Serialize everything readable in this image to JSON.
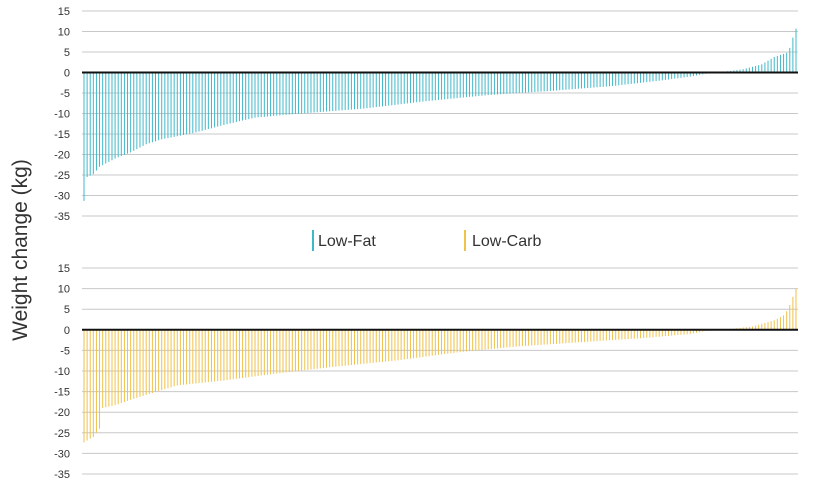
{
  "chart_data": {
    "type": "bar",
    "ylabel": "Weight change (kg)",
    "ylim": [
      -35,
      15
    ],
    "yticks": [
      15,
      10,
      5,
      0,
      -5,
      -10,
      -15,
      -20,
      -25,
      -30,
      -35
    ],
    "grid": true,
    "legend": [
      {
        "label": "Low-Fat",
        "color": "#3fb8c9"
      },
      {
        "label": "Low-Carb",
        "color": "#f0c24a"
      }
    ],
    "panels": [
      {
        "series": "Low-Fat",
        "color": "#3fb8c9",
        "bar_count": 230,
        "sorted_values_anchors": [
          [
            0,
            -31.3
          ],
          [
            1,
            -25.5
          ],
          [
            3,
            -24.8
          ],
          [
            5,
            -23
          ],
          [
            10,
            -21
          ],
          [
            15,
            -19.5
          ],
          [
            20,
            -17.5
          ],
          [
            25,
            -16.3
          ],
          [
            35,
            -14.8
          ],
          [
            45,
            -12.8
          ],
          [
            55,
            -11
          ],
          [
            70,
            -10
          ],
          [
            90,
            -8.8
          ],
          [
            110,
            -7
          ],
          [
            130,
            -5.5
          ],
          [
            150,
            -4.5
          ],
          [
            170,
            -3.3
          ],
          [
            185,
            -2
          ],
          [
            195,
            -1
          ],
          [
            200,
            -0.3
          ],
          [
            204,
            0
          ],
          [
            212,
            0.8
          ],
          [
            218,
            2
          ],
          [
            222,
            3.8
          ],
          [
            226,
            4.8
          ],
          [
            227,
            6
          ],
          [
            228,
            8.5
          ],
          [
            229,
            10.7
          ]
        ]
      },
      {
        "series": "Low-Carb",
        "color": "#f0c24a",
        "bar_count": 230,
        "sorted_values_anchors": [
          [
            0,
            -27.3
          ],
          [
            3,
            -26
          ],
          [
            5,
            -24
          ],
          [
            6,
            -19
          ],
          [
            10,
            -18.3
          ],
          [
            15,
            -17
          ],
          [
            20,
            -15.8
          ],
          [
            30,
            -13.5
          ],
          [
            45,
            -12.3
          ],
          [
            60,
            -10.8
          ],
          [
            80,
            -9
          ],
          [
            100,
            -7.5
          ],
          [
            120,
            -5.5
          ],
          [
            140,
            -4
          ],
          [
            160,
            -3
          ],
          [
            180,
            -2
          ],
          [
            195,
            -1
          ],
          [
            200,
            -0.3
          ],
          [
            205,
            0
          ],
          [
            215,
            0.8
          ],
          [
            222,
            2.3
          ],
          [
            225,
            3.5
          ],
          [
            226,
            4.5
          ],
          [
            227,
            6
          ],
          [
            228,
            8
          ],
          [
            229,
            10
          ]
        ]
      }
    ]
  }
}
